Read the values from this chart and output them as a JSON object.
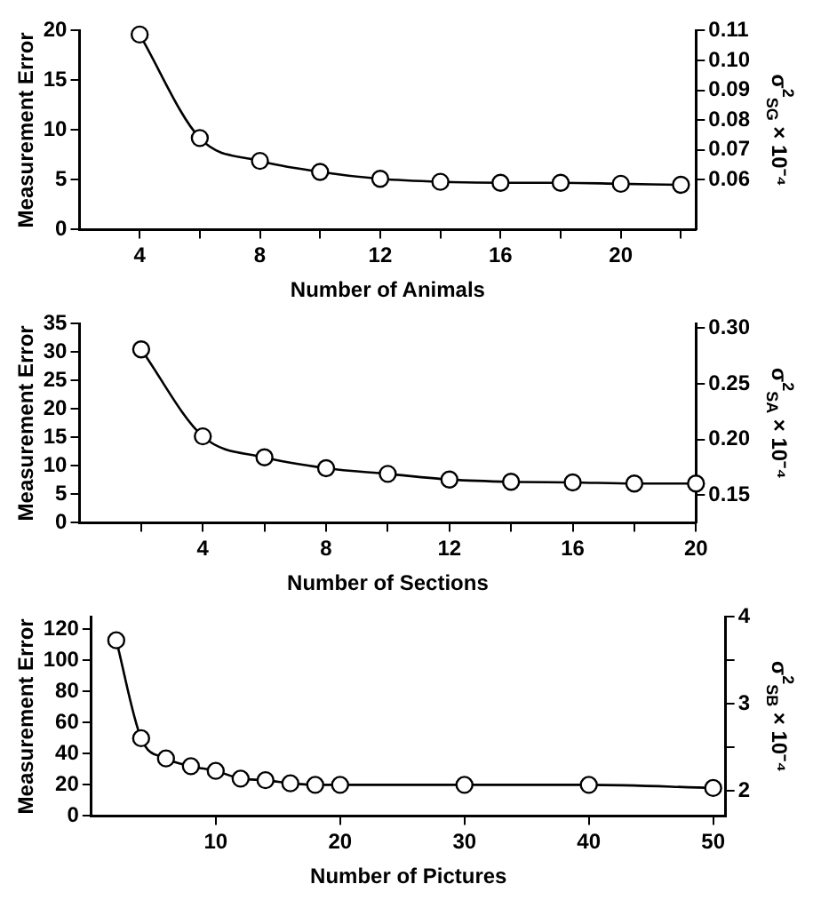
{
  "chart_data": [
    {
      "type": "line",
      "xlabel": "Number of Animals",
      "ylabel": "Measurement Error",
      "y2label": "σ$^{2}$$_{SG}$ × 10⁻⁴",
      "x": [
        4,
        6,
        8,
        10,
        12,
        14,
        16,
        18,
        20,
        22
      ],
      "series": [
        {
          "color": "#000000",
          "values": [
            19.6,
            9.2,
            6.9,
            5.8,
            5.1,
            4.8,
            4.7,
            4.7,
            4.6,
            4.5
          ]
        }
      ],
      "xlim": [
        2,
        22.5
      ],
      "xticks": [
        4,
        {
          "value": 6,
          "label": null
        },
        8,
        {
          "value": 10,
          "label": null
        },
        12,
        {
          "value": 14,
          "label": null
        },
        16,
        {
          "value": 18,
          "label": null
        },
        20,
        {
          "value": 22,
          "label": null
        }
      ],
      "ylim": [
        0,
        20
      ],
      "yticks": [
        0,
        5,
        10,
        15,
        20
      ],
      "y2lim": [
        0.0433,
        0.11
      ],
      "y2ticks": [
        0.06,
        0.07,
        0.08,
        0.09,
        {
          "value": 0.1,
          "label": "0.10"
        },
        0.11
      ],
      "grid": false,
      "legend": false,
      "marker": "circle",
      "line_style": "solid"
    },
    {
      "type": "line",
      "xlabel": "Number of Sections",
      "ylabel": "Measurement Error",
      "y2label": "σ$^{2}$$_{SA}$ × 10⁻⁴",
      "x": [
        2,
        4,
        6,
        8,
        10,
        12,
        14,
        16,
        18,
        20
      ],
      "series": [
        {
          "color": "#000000",
          "values": [
            30.5,
            15.2,
            11.5,
            9.6,
            8.6,
            7.6,
            7.2,
            7.1,
            6.9,
            6.9
          ]
        }
      ],
      "xlim": [
        0,
        20
      ],
      "xticks": [
        {
          "value": 2,
          "label": null
        },
        4,
        {
          "value": 6,
          "label": null
        },
        8,
        {
          "value": 10,
          "label": null
        },
        12,
        {
          "value": 14,
          "label": null
        },
        16,
        {
          "value": 18,
          "label": null
        },
        20
      ],
      "ylim": [
        0,
        35
      ],
      "yticks": [
        0,
        5,
        10,
        15,
        20,
        25,
        30,
        35
      ],
      "y2lim": [
        0.125,
        0.304
      ],
      "y2ticks": [
        0.15,
        {
          "value": 0.2,
          "label": "0.20"
        },
        0.25,
        {
          "value": 0.3,
          "label": "0.30"
        }
      ],
      "grid": false,
      "legend": false,
      "marker": "circle",
      "line_style": "solid"
    },
    {
      "type": "line",
      "xlabel": "Number of Pictures",
      "ylabel": "Measurement Error",
      "y2label": "σ$^{2}$$_{SB}$ × 10⁻⁴",
      "x": [
        2,
        4,
        6,
        8,
        10,
        12,
        14,
        16,
        18,
        20,
        30,
        40,
        50
      ],
      "series": [
        {
          "color": "#000000",
          "values": [
            113,
            50,
            37,
            32,
            29,
            24,
            23,
            21,
            20,
            20,
            20,
            20,
            18
          ]
        }
      ],
      "xlim": [
        0,
        51
      ],
      "xticks": [
        10,
        20,
        30,
        40,
        50
      ],
      "ylim": [
        0,
        128
      ],
      "yticks": [
        0,
        20,
        40,
        60,
        80,
        100,
        120
      ],
      "y2lim": [
        1.71,
        4
      ],
      "y2ticks": [
        2,
        {
          "value": 2.5,
          "label": null
        },
        3,
        {
          "value": 3.5,
          "label": null
        },
        4
      ],
      "grid": false,
      "legend": false,
      "marker": "circle",
      "line_style": "solid"
    }
  ]
}
